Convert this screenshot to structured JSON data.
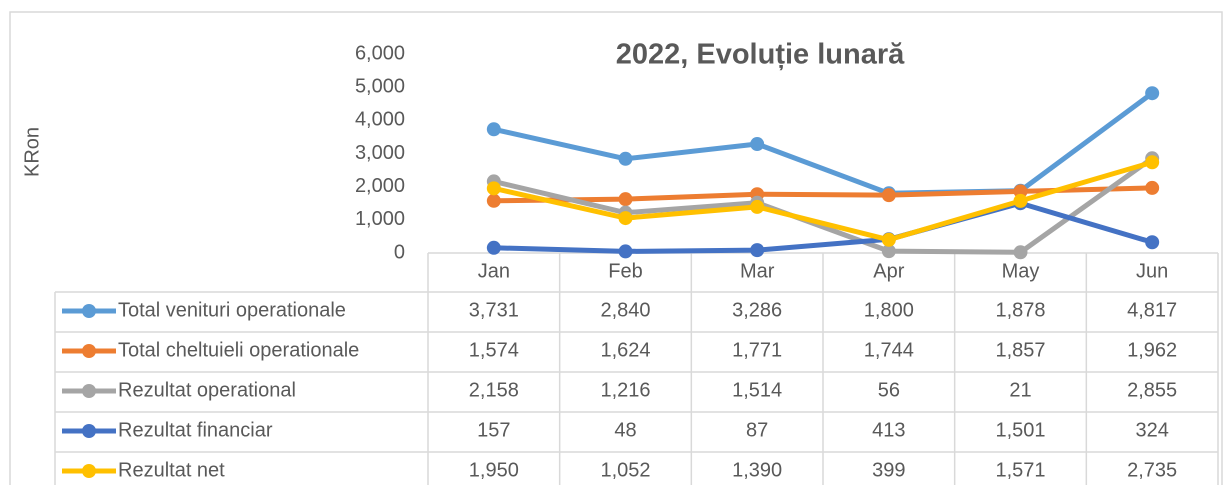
{
  "chart_data": {
    "type": "line",
    "title": "2022, Evoluție lunară",
    "y_label": "KRon",
    "categories": [
      "Jan",
      "Feb",
      "Mar",
      "Apr",
      "May",
      "Jun"
    ],
    "ylim": [
      0,
      6000
    ],
    "yticks": [
      0,
      {
        "value": 1000,
        "label": "1,000"
      },
      {
        "value": 2000,
        "label": "2,000"
      },
      {
        "value": 3000,
        "label": "3,000"
      },
      {
        "value": 4000,
        "label": "4,000"
      },
      {
        "value": 5000,
        "label": "5,000"
      },
      {
        "value": 6000,
        "label": "6,000"
      }
    ],
    "series": [
      {
        "name": "Total venituri operationale",
        "color": "#5b9bd5",
        "values": [
          3731,
          2840,
          3286,
          1800,
          1878,
          4817
        ],
        "value_labels": [
          "3,731",
          "2,840",
          "3,286",
          "1,800",
          "1,878",
          "4,817"
        ]
      },
      {
        "name": "Total cheltuieli operationale",
        "color": "#ed7d31",
        "values": [
          1574,
          1624,
          1771,
          1744,
          1857,
          1962
        ],
        "value_labels": [
          "1,574",
          "1,624",
          "1,771",
          "1,744",
          "1,857",
          "1,962"
        ]
      },
      {
        "name": "Rezultat operational",
        "color": "#a5a5a5",
        "values": [
          2158,
          1216,
          1514,
          56,
          21,
          2855
        ],
        "value_labels": [
          "2,158",
          "1,216",
          "1,514",
          "56",
          "21",
          "2,855"
        ]
      },
      {
        "name": "Rezultat financiar",
        "color": "#4472c4",
        "values": [
          157,
          48,
          87,
          413,
          1501,
          324
        ],
        "value_labels": [
          "157",
          "48",
          "87",
          "413",
          "1,501",
          "324"
        ]
      },
      {
        "name": "Rezultat net",
        "color": "#ffc000",
        "values": [
          1950,
          1052,
          1390,
          399,
          1571,
          2735
        ],
        "value_labels": [
          "1,950",
          "1,052",
          "1,390",
          "399",
          "1,571",
          "2,735"
        ]
      }
    ]
  }
}
